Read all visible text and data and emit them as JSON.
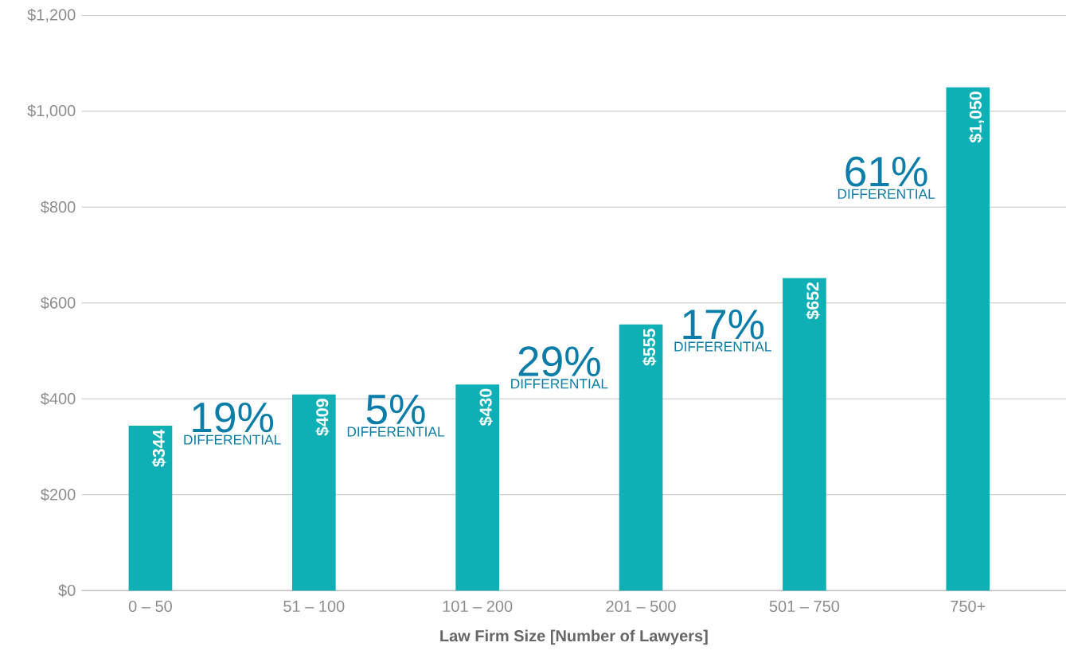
{
  "chart_data": {
    "type": "bar",
    "xlabel": "Law Firm Size [Number of Lawyers]",
    "categories": [
      "0 – 50",
      "51 – 100",
      "101 – 200",
      "201 – 500",
      "501 – 750",
      "750+"
    ],
    "values": [
      344,
      409,
      430,
      555,
      652,
      1050
    ],
    "value_labels": [
      "$344",
      "$409",
      "$430",
      "$555",
      "$652",
      "$1,050"
    ],
    "color": "#0fafb6",
    "ylim": [
      0,
      1200
    ],
    "yticks": [
      {
        "value": 0,
        "label": "$0"
      },
      {
        "value": 200,
        "label": "$200"
      },
      {
        "value": 400,
        "label": "$400"
      },
      {
        "value": 600,
        "label": "$600"
      },
      {
        "value": 800,
        "label": "$800"
      },
      {
        "value": 1000,
        "label": "$1,000"
      },
      {
        "value": 1200,
        "label": "$1,200"
      }
    ],
    "grid": "y",
    "annotations": [
      "19%",
      "DIFFERENTIAL",
      "5%",
      "DIFFERENTIAL",
      "29%",
      "DIFFERENTIAL",
      "17%",
      "DIFFERENTIAL",
      "61%",
      "DIFFERENTIAL"
    ]
  }
}
